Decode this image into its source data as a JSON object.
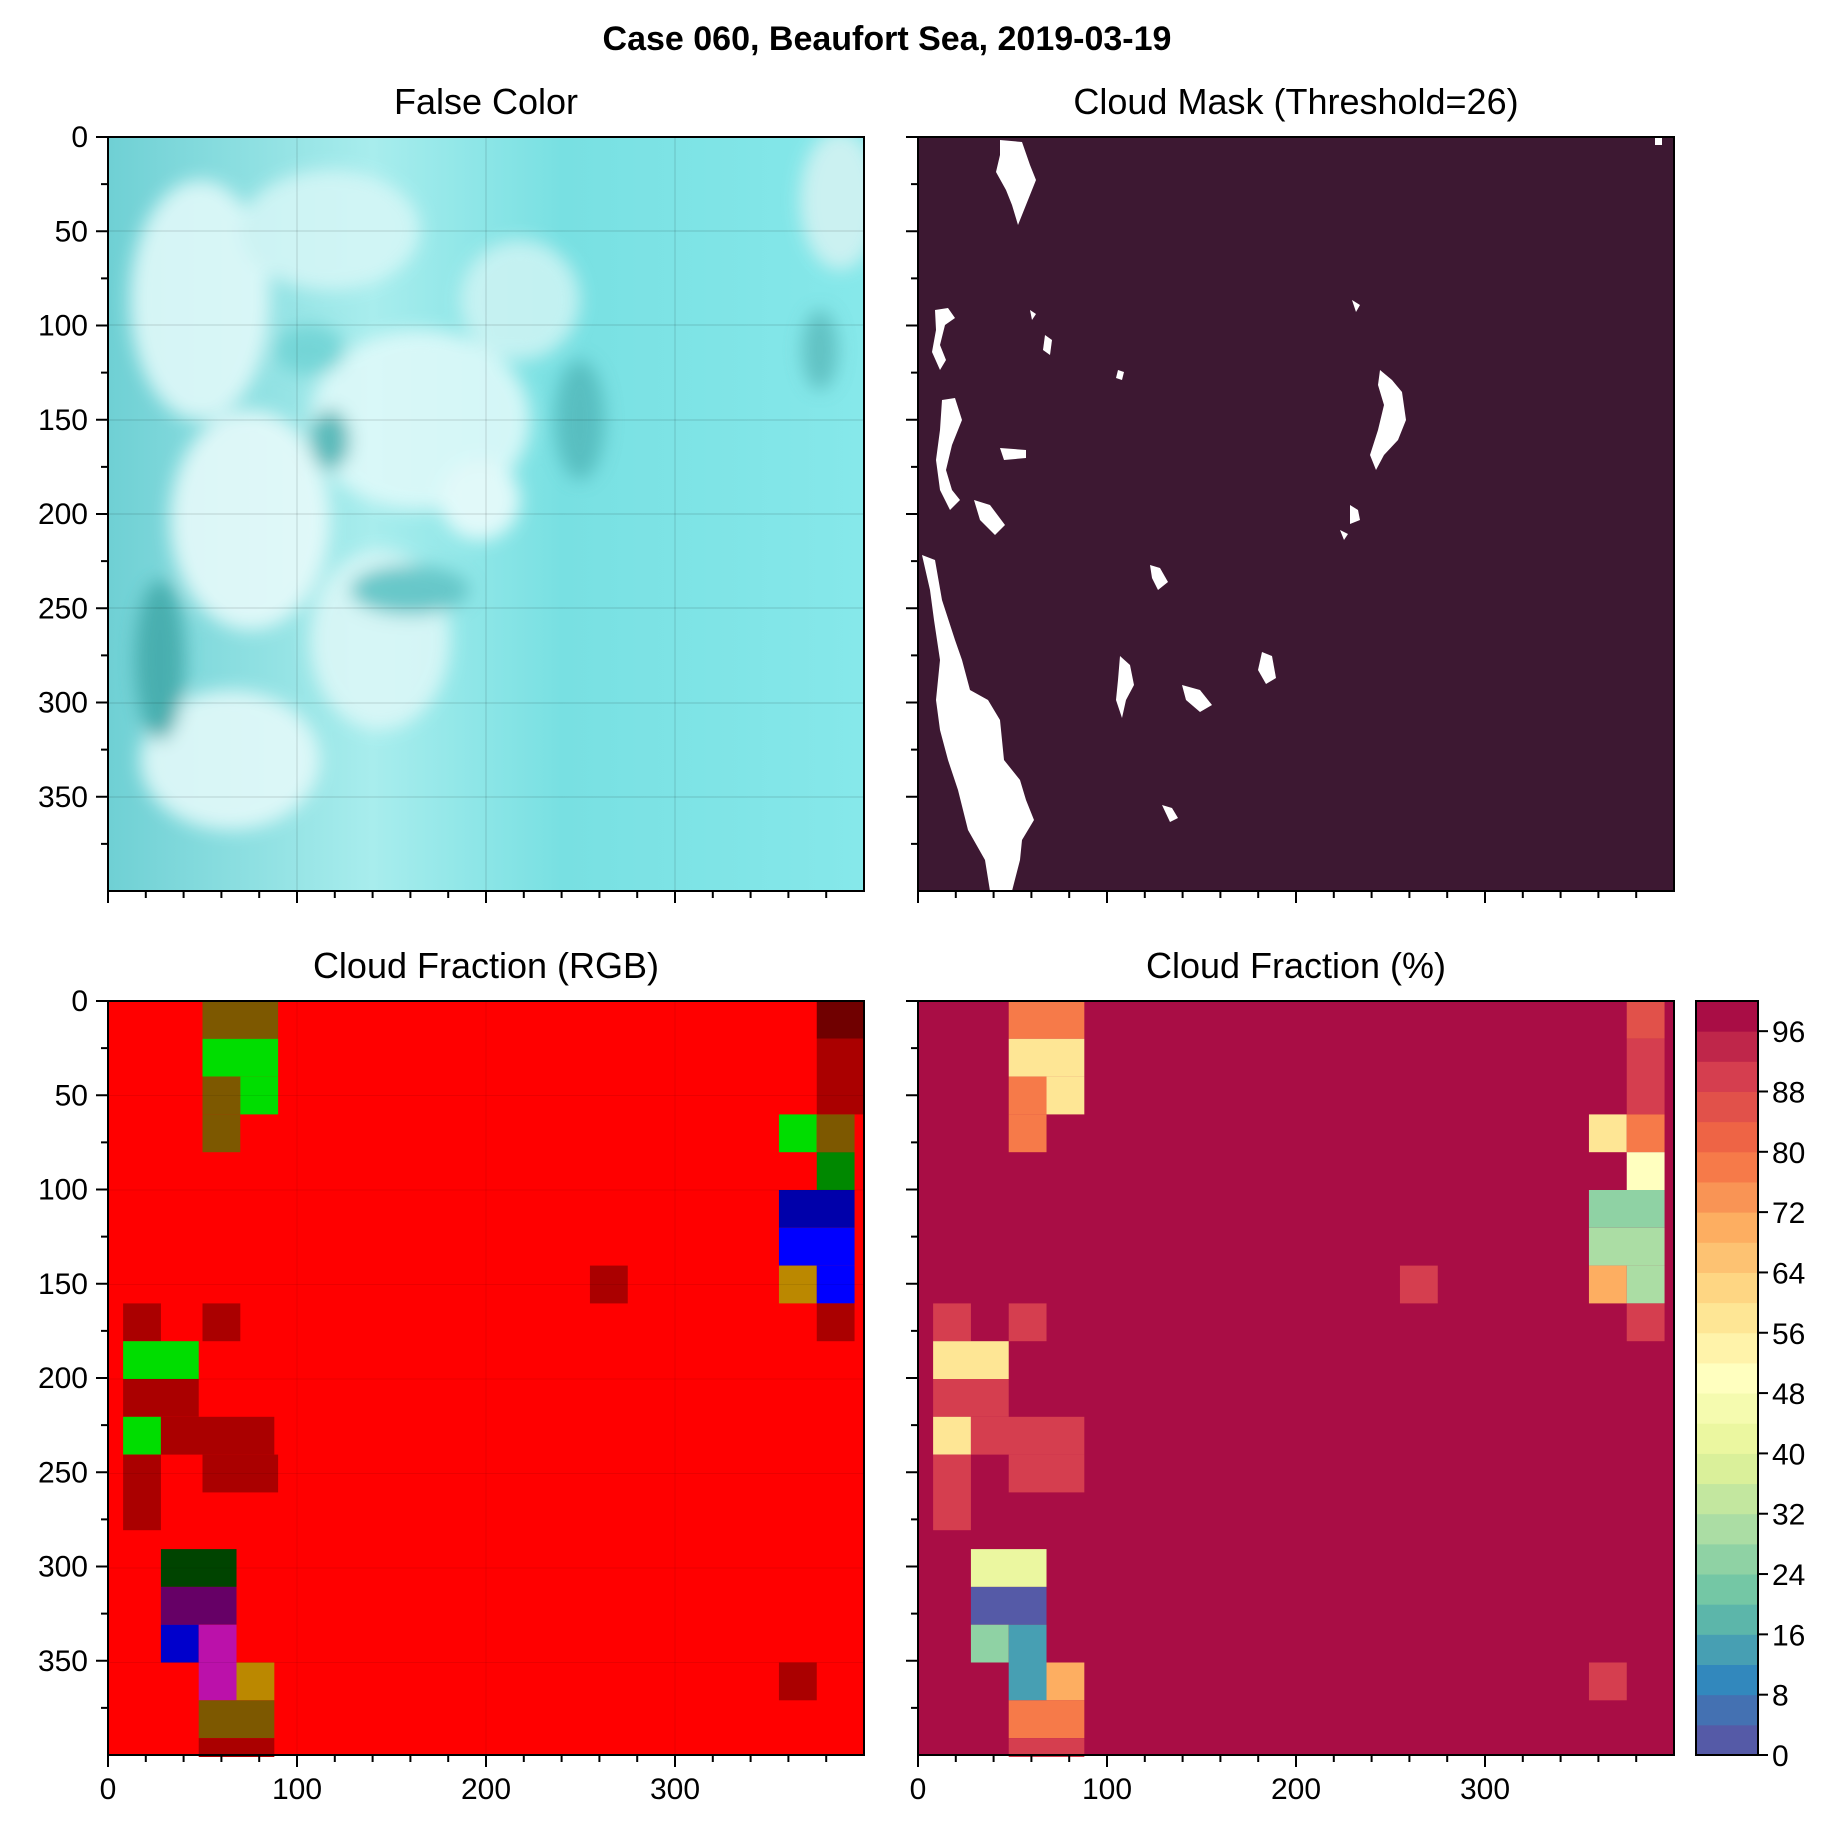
{
  "suptitle": "Case 060, Beaufort Sea, 2019-03-19",
  "panels": {
    "false_color": {
      "title": "False Color"
    },
    "cloud_mask": {
      "title": "Cloud Mask (Threshold=26)"
    },
    "cf_rgb": {
      "title": "Cloud Fraction (RGB)"
    },
    "cf_pct": {
      "title": "Cloud Fraction (%)"
    }
  },
  "colors": {
    "mask_background": "#3d1832",
    "mask_cloud": "#ffffff",
    "ice_cyan": "#7fe6e6",
    "rgb_red": "#ff0000"
  },
  "chart_data": [
    {
      "type": "image",
      "panel": "false_color",
      "xlim": [
        0,
        400
      ],
      "ylim": [
        400,
        0
      ],
      "xticks": [
        0,
        100,
        200,
        300
      ],
      "yticks": [
        0,
        50,
        100,
        150,
        200,
        250,
        300,
        350
      ],
      "grid": true
    },
    {
      "type": "image",
      "panel": "cloud_mask",
      "xlim": [
        0,
        400
      ],
      "ylim": [
        400,
        0
      ],
      "xticks": [
        0,
        100,
        200,
        300
      ],
      "yticks": [
        0,
        50,
        100,
        150,
        200,
        250,
        300,
        350
      ],
      "grid": false
    },
    {
      "type": "heatmap",
      "panel": "cf_rgb",
      "cell_size": 20,
      "xlim": [
        0,
        400
      ],
      "ylim": [
        400,
        0
      ],
      "xticks": [
        0,
        100,
        200,
        300
      ],
      "yticks": [
        0,
        50,
        100,
        150,
        200,
        250,
        300,
        350
      ],
      "tick_labels_x": [
        "0",
        "100",
        "200",
        "300"
      ],
      "tick_labels_y": [
        "0",
        "50",
        "100",
        "150",
        "200",
        "250",
        "300",
        "350"
      ],
      "default_color": "#ff0000",
      "cells": [
        {
          "x": 50,
          "y": 0,
          "w": 40,
          "h": 20,
          "color": "#7d5800"
        },
        {
          "x": 50,
          "y": 20,
          "w": 40,
          "h": 20,
          "color": "#00dd00"
        },
        {
          "x": 50,
          "y": 40,
          "w": 20,
          "h": 20,
          "color": "#7d5800"
        },
        {
          "x": 70,
          "y": 40,
          "w": 20,
          "h": 20,
          "color": "#00dd00"
        },
        {
          "x": 50,
          "y": 60,
          "w": 20,
          "h": 20,
          "color": "#7d5800"
        },
        {
          "x": 375,
          "y": 0,
          "w": 25,
          "h": 20,
          "color": "#700000"
        },
        {
          "x": 375,
          "y": 20,
          "w": 25,
          "h": 40,
          "color": "#aa0000"
        },
        {
          "x": 355,
          "y": 60,
          "w": 20,
          "h": 20,
          "color": "#00dd00"
        },
        {
          "x": 375,
          "y": 60,
          "w": 20,
          "h": 20,
          "color": "#7d5800"
        },
        {
          "x": 375,
          "y": 80,
          "w": 20,
          "h": 20,
          "color": "#008800"
        },
        {
          "x": 355,
          "y": 100,
          "w": 40,
          "h": 20,
          "color": "#0000aa"
        },
        {
          "x": 355,
          "y": 120,
          "w": 40,
          "h": 20,
          "color": "#0000ff"
        },
        {
          "x": 355,
          "y": 140,
          "w": 20,
          "h": 20,
          "color": "#bb8800"
        },
        {
          "x": 375,
          "y": 140,
          "w": 20,
          "h": 20,
          "color": "#0000ff"
        },
        {
          "x": 375,
          "y": 160,
          "w": 20,
          "h": 20,
          "color": "#aa0000"
        },
        {
          "x": 255,
          "y": 140,
          "w": 20,
          "h": 20,
          "color": "#aa0000"
        },
        {
          "x": 8,
          "y": 160,
          "w": 20,
          "h": 20,
          "color": "#aa0000"
        },
        {
          "x": 50,
          "y": 160,
          "w": 20,
          "h": 20,
          "color": "#aa0000"
        },
        {
          "x": 8,
          "y": 180,
          "w": 40,
          "h": 20,
          "color": "#00dd00"
        },
        {
          "x": 8,
          "y": 200,
          "w": 40,
          "h": 20,
          "color": "#aa0000"
        },
        {
          "x": 8,
          "y": 220,
          "w": 20,
          "h": 20,
          "color": "#00dd00"
        },
        {
          "x": 28,
          "y": 220,
          "w": 60,
          "h": 20,
          "color": "#aa0000"
        },
        {
          "x": 8,
          "y": 240,
          "w": 20,
          "h": 40,
          "color": "#aa0000"
        },
        {
          "x": 50,
          "y": 240,
          "w": 40,
          "h": 20,
          "color": "#aa0000"
        },
        {
          "x": 28,
          "y": 290,
          "w": 40,
          "h": 20,
          "color": "#004400"
        },
        {
          "x": 28,
          "y": 310,
          "w": 40,
          "h": 20,
          "color": "#660066"
        },
        {
          "x": 28,
          "y": 330,
          "w": 20,
          "h": 20,
          "color": "#0000cc"
        },
        {
          "x": 48,
          "y": 330,
          "w": 20,
          "h": 40,
          "color": "#bb11aa"
        },
        {
          "x": 68,
          "y": 350,
          "w": 20,
          "h": 20,
          "color": "#bb8800"
        },
        {
          "x": 48,
          "y": 370,
          "w": 40,
          "h": 20,
          "color": "#7d5800"
        },
        {
          "x": 48,
          "y": 390,
          "w": 40,
          "h": 10,
          "color": "#aa0000"
        },
        {
          "x": 355,
          "y": 350,
          "w": 20,
          "h": 20,
          "color": "#aa0000"
        }
      ]
    },
    {
      "type": "heatmap",
      "panel": "cf_pct",
      "cell_size": 20,
      "xlim": [
        0,
        400
      ],
      "ylim": [
        400,
        0
      ],
      "xticks": [
        0,
        100,
        200,
        300
      ],
      "yticks": [
        0,
        50,
        100,
        150,
        200,
        250,
        300,
        350
      ],
      "tick_labels_x": [
        "0",
        "100",
        "200",
        "300"
      ],
      "default_value": 100,
      "cells": [
        {
          "x": 48,
          "y": 0,
          "w": 40,
          "h": 20,
          "value": 78
        },
        {
          "x": 48,
          "y": 20,
          "w": 40,
          "h": 20,
          "value": 56
        },
        {
          "x": 48,
          "y": 40,
          "w": 20,
          "h": 20,
          "value": 78
        },
        {
          "x": 68,
          "y": 40,
          "w": 20,
          "h": 20,
          "value": 56
        },
        {
          "x": 48,
          "y": 60,
          "w": 20,
          "h": 20,
          "value": 78
        },
        {
          "x": 375,
          "y": 0,
          "w": 20,
          "h": 20,
          "value": 86
        },
        {
          "x": 375,
          "y": 20,
          "w": 20,
          "h": 40,
          "value": 90
        },
        {
          "x": 355,
          "y": 60,
          "w": 20,
          "h": 20,
          "value": 56
        },
        {
          "x": 375,
          "y": 60,
          "w": 20,
          "h": 20,
          "value": 78
        },
        {
          "x": 375,
          "y": 80,
          "w": 20,
          "h": 20,
          "value": 48
        },
        {
          "x": 355,
          "y": 100,
          "w": 40,
          "h": 20,
          "value": 24
        },
        {
          "x": 355,
          "y": 120,
          "w": 40,
          "h": 20,
          "value": 30
        },
        {
          "x": 355,
          "y": 140,
          "w": 20,
          "h": 20,
          "value": 70
        },
        {
          "x": 375,
          "y": 140,
          "w": 20,
          "h": 20,
          "value": 30
        },
        {
          "x": 375,
          "y": 160,
          "w": 20,
          "h": 20,
          "value": 90
        },
        {
          "x": 255,
          "y": 140,
          "w": 20,
          "h": 20,
          "value": 90
        },
        {
          "x": 8,
          "y": 160,
          "w": 20,
          "h": 20,
          "value": 90
        },
        {
          "x": 48,
          "y": 160,
          "w": 20,
          "h": 20,
          "value": 90
        },
        {
          "x": 8,
          "y": 180,
          "w": 40,
          "h": 20,
          "value": 56
        },
        {
          "x": 8,
          "y": 200,
          "w": 40,
          "h": 20,
          "value": 90
        },
        {
          "x": 8,
          "y": 220,
          "w": 20,
          "h": 20,
          "value": 56
        },
        {
          "x": 28,
          "y": 220,
          "w": 60,
          "h": 20,
          "value": 90
        },
        {
          "x": 8,
          "y": 240,
          "w": 20,
          "h": 40,
          "value": 90
        },
        {
          "x": 48,
          "y": 240,
          "w": 40,
          "h": 20,
          "value": 90
        },
        {
          "x": 28,
          "y": 290,
          "w": 40,
          "h": 20,
          "value": 42
        },
        {
          "x": 28,
          "y": 310,
          "w": 40,
          "h": 20,
          "value": 2
        },
        {
          "x": 28,
          "y": 330,
          "w": 20,
          "h": 20,
          "value": 24
        },
        {
          "x": 48,
          "y": 330,
          "w": 20,
          "h": 40,
          "value": 12
        },
        {
          "x": 68,
          "y": 350,
          "w": 20,
          "h": 20,
          "value": 70
        },
        {
          "x": 48,
          "y": 370,
          "w": 40,
          "h": 20,
          "value": 78
        },
        {
          "x": 48,
          "y": 390,
          "w": 40,
          "h": 10,
          "value": 90
        },
        {
          "x": 355,
          "y": 350,
          "w": 20,
          "h": 20,
          "value": 90
        }
      ],
      "colorbar": {
        "min": 0,
        "max": 100,
        "step": 4,
        "ticks": [
          0,
          8,
          16,
          24,
          32,
          40,
          48,
          56,
          64,
          72,
          80,
          88,
          96
        ],
        "tick_labels": [
          "0",
          "8",
          "16",
          "24",
          "32",
          "40",
          "48",
          "56",
          "64",
          "72",
          "80",
          "88",
          "96"
        ]
      }
    }
  ]
}
